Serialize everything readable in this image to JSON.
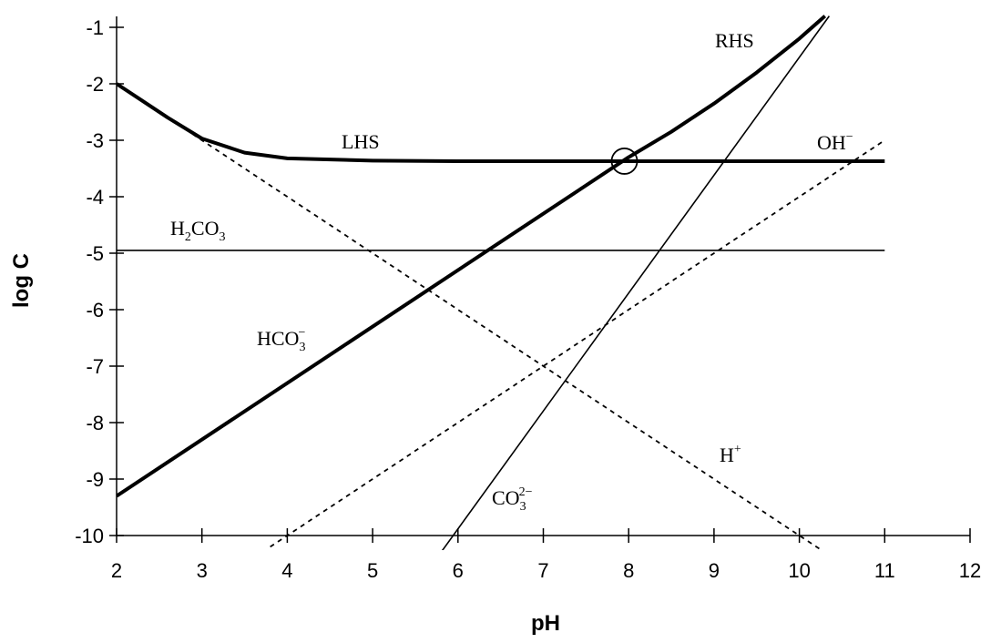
{
  "chart_data": {
    "type": "line",
    "xlabel": "pH",
    "ylabel": "log C",
    "xlim": [
      2,
      12
    ],
    "ylim": [
      -10,
      -1
    ],
    "x_ticks": [
      "2",
      "3",
      "4",
      "5",
      "6",
      "7",
      "8",
      "9",
      "10",
      "11",
      "12"
    ],
    "y_ticks": [
      "-1",
      "-2",
      "-3",
      "-4",
      "-5",
      "-6",
      "-7",
      "-8",
      "-9",
      "-10"
    ],
    "grid": false,
    "series": [
      {
        "label_main": "H",
        "label_sub": "2",
        "label_main2": "CO",
        "label_sub2": "3",
        "label_sup": "",
        "style": "solid-thin",
        "points": [
          [
            2,
            -4.95
          ],
          [
            11,
            -4.95
          ]
        ]
      },
      {
        "label_main": "HCO",
        "label_sub": "3",
        "label_main2": "",
        "label_sub2": "",
        "label_sup": "−",
        "style": "solid-thick",
        "points": [
          [
            2,
            -9.3
          ],
          [
            8.0,
            -3.3
          ]
        ]
      },
      {
        "label_main": "CO",
        "label_sub": "3",
        "label_main2": "",
        "label_sub2": "",
        "label_sup": "2−",
        "style": "solid-thin",
        "points": [
          [
            5.8,
            -10.3
          ],
          [
            10.35,
            -0.8
          ]
        ]
      },
      {
        "label_main": "H",
        "label_sub": "",
        "label_main2": "",
        "label_sub2": "",
        "label_sup": "+",
        "style": "dashed",
        "points": [
          [
            2,
            -2
          ],
          [
            10.3,
            -10.3
          ]
        ]
      },
      {
        "label_main": "OH",
        "label_sub": "",
        "label_main2": "",
        "label_sub2": "",
        "label_sup": "−",
        "style": "dashed",
        "points": [
          [
            3.8,
            -10.2
          ],
          [
            11,
            -3
          ]
        ]
      },
      {
        "label_main": "LHS",
        "label_sub": "",
        "label_main2": "",
        "label_sub2": "",
        "label_sup": "",
        "style": "solid-thick",
        "points": [
          [
            2,
            -2
          ],
          [
            2.3,
            -2.3
          ],
          [
            2.6,
            -2.6
          ],
          [
            3.0,
            -2.97
          ],
          [
            3.5,
            -3.22
          ],
          [
            4.0,
            -3.32
          ],
          [
            5.0,
            -3.36
          ],
          [
            6.0,
            -3.37
          ],
          [
            8.0,
            -3.37
          ],
          [
            11,
            -3.37
          ]
        ]
      },
      {
        "label_main": "RHS",
        "label_sub": "",
        "label_main2": "",
        "label_sub2": "",
        "label_sup": "",
        "style": "solid-thick",
        "points": [
          [
            8.0,
            -3.3
          ],
          [
            8.5,
            -2.85
          ],
          [
            9.0,
            -2.35
          ],
          [
            9.5,
            -1.8
          ],
          [
            10.0,
            -1.2
          ],
          [
            10.3,
            -0.8
          ]
        ]
      }
    ],
    "marker": {
      "x": 7.95,
      "y": -3.37,
      "shape": "open-circle"
    }
  }
}
